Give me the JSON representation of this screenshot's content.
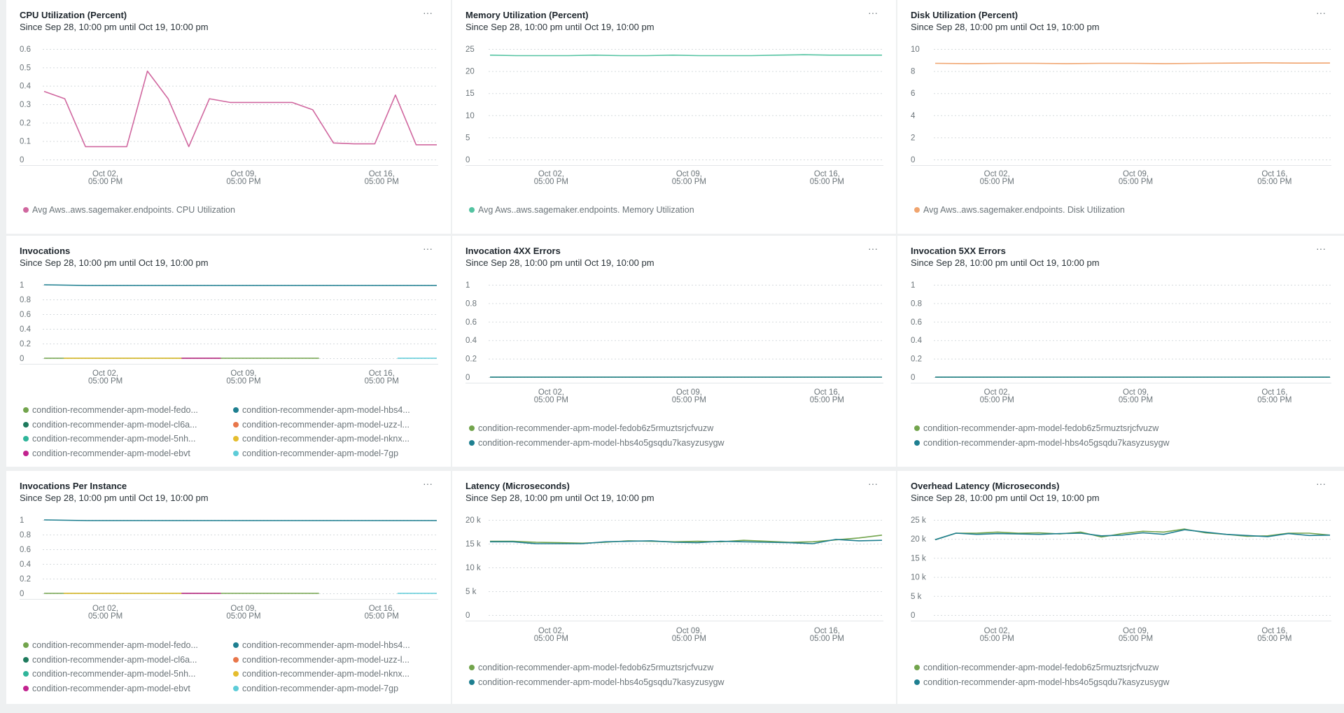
{
  "colors": {
    "pink": "#d0679f",
    "mint": "#53c3a1",
    "peach": "#f0a46e",
    "olive_green": "#72a44c",
    "dark_green": "#1e7a5d",
    "teal": "#1e7f90",
    "orange": "#e8764a",
    "medium_teal": "#2fb59a",
    "gold": "#e5bd2e",
    "magenta": "#c2238f",
    "cyan": "#5dccd8",
    "line_green": "#2e8a66"
  },
  "panels": [
    {
      "title": "CPU Utilization (Percent)",
      "subtitle": "Since Sep 28, 10:00 pm until Oct 19, 10:00 pm",
      "menu": "···",
      "chart_data": {
        "type": "line",
        "ylim": [
          0,
          0.6
        ],
        "yticks": [
          "0.6",
          "0.5",
          "0.4",
          "0.3",
          "0.2",
          "0.1",
          "0"
        ],
        "xticks": [
          [
            "Oct 02,",
            "05:00 PM"
          ],
          [
            "Oct 09,",
            "05:00 PM"
          ],
          [
            "Oct 16,",
            "05:00 PM"
          ]
        ],
        "series": [
          {
            "name": "Avg Aws..aws.sagemaker.endpoints. CPU Utilization",
            "color": "pink",
            "legend_dot": "pink",
            "values": [
              0.37,
              0.33,
              0.07,
              0.07,
              0.07,
              0.48,
              0.33,
              0.07,
              0.33,
              0.31,
              0.31,
              0.31,
              0.31,
              0.27,
              0.09,
              0.085,
              0.085,
              0.35,
              0.08,
              0.08
            ]
          }
        ]
      },
      "legend": [
        {
          "label": "Avg Aws..aws.sagemaker.endpoints. CPU Utilization",
          "color": "pink"
        }
      ]
    },
    {
      "title": "Memory Utilization (Percent)",
      "subtitle": "Since Sep 28, 10:00 pm until Oct 19, 10:00 pm",
      "menu": "···",
      "chart_data": {
        "type": "line",
        "ylim": [
          0,
          25
        ],
        "yticks": [
          "25",
          "20",
          "15",
          "10",
          "5",
          "0"
        ],
        "xticks": [
          [
            "Oct 02,",
            "05:00 PM"
          ],
          [
            "Oct 09,",
            "05:00 PM"
          ],
          [
            "Oct 16,",
            "05:00 PM"
          ]
        ],
        "series": [
          {
            "name": "Avg Aws..aws.sagemaker.endpoints. Memory Utilization",
            "color": "mint",
            "values": [
              23.6,
              23.5,
              23.5,
              23.5,
              23.6,
              23.5,
              23.5,
              23.6,
              23.5,
              23.5,
              23.5,
              23.6,
              23.7,
              23.6,
              23.6,
              23.6
            ]
          }
        ]
      },
      "legend": [
        {
          "label": "Avg Aws..aws.sagemaker.endpoints. Memory Utilization",
          "color": "mint"
        }
      ]
    },
    {
      "title": "Disk Utilization (Percent)",
      "subtitle": "Since Sep 28, 10:00 pm until Oct 19, 10:00 pm",
      "menu": "···",
      "chart_data": {
        "type": "line",
        "ylim": [
          0,
          10
        ],
        "yticks": [
          "10",
          "8",
          "6",
          "4",
          "2",
          "0"
        ],
        "xticks": [
          [
            "Oct 02,",
            "05:00 PM"
          ],
          [
            "Oct 09,",
            "05:00 PM"
          ],
          [
            "Oct 16,",
            "05:00 PM"
          ]
        ],
        "series": [
          {
            "name": "Avg Aws..aws.sagemaker.endpoints. Disk Utilization",
            "color": "peach",
            "values": [
              8.7,
              8.68,
              8.7,
              8.7,
              8.68,
              8.7,
              8.7,
              8.68,
              8.7,
              8.72,
              8.75,
              8.72,
              8.73
            ]
          }
        ]
      },
      "legend": [
        {
          "label": "Avg Aws..aws.sagemaker.endpoints. Disk Utilization",
          "color": "peach"
        }
      ]
    },
    {
      "title": "Invocations",
      "subtitle": "Since Sep 28, 10:00 pm until Oct 19, 10:00 pm",
      "menu": "···",
      "chart_data": {
        "type": "line",
        "ylim": [
          0,
          1
        ],
        "yticks": [
          "1",
          "0.8",
          "0.6",
          "0.4",
          "0.2",
          "0"
        ],
        "xticks": [
          [
            "Oct 02,",
            "05:00 PM"
          ],
          [
            "Oct 09,",
            "05:00 PM"
          ],
          [
            "Oct 16,",
            "05:00 PM"
          ]
        ],
        "series": [
          {
            "name": "condition-recommender-apm-model-hbs4",
            "color": "teal",
            "values": [
              1,
              0.99,
              0.99,
              0.99,
              0.99,
              0.99,
              0.99,
              0.99,
              0.99,
              0.99
            ]
          },
          {
            "name": "condition-recommender-apm-model-fedo",
            "color": "olive_green",
            "values": [
              0,
              0,
              0,
              0,
              0,
              0,
              0,
              0,
              0,
              0
            ],
            "range": [
              0,
              0.7
            ]
          },
          {
            "name": "condition-recommender-apm-model-uzz-l",
            "color": "gold",
            "values": [
              0,
              0,
              0
            ],
            "range": [
              0.05,
              0.35
            ]
          },
          {
            "name": "condition-recommender-apm-model-ebvt",
            "color": "magenta",
            "values": [
              0,
              0
            ],
            "range": [
              0.35,
              0.45
            ]
          },
          {
            "name": "condition-recommender-apm-model-7gp",
            "color": "cyan",
            "values": [
              0,
              0
            ],
            "range": [
              0.9,
              1
            ]
          }
        ]
      },
      "legend": [
        {
          "label": "condition-recommender-apm-model-fedo...",
          "color": "olive_green"
        },
        {
          "label": "condition-recommender-apm-model-hbs4...",
          "color": "teal"
        },
        {
          "label": "condition-recommender-apm-model-cl6a...",
          "color": "dark_green"
        },
        {
          "label": "condition-recommender-apm-model-uzz-l...",
          "color": "orange"
        },
        {
          "label": "condition-recommender-apm-model-5nh...",
          "color": "medium_teal"
        },
        {
          "label": "condition-recommender-apm-model-nknx...",
          "color": "gold"
        },
        {
          "label": "condition-recommender-apm-model-ebvt",
          "color": "magenta"
        },
        {
          "label": "condition-recommender-apm-model-7gp",
          "color": "cyan"
        }
      ]
    },
    {
      "title": "Invocation 4XX Errors",
      "subtitle": "Since Sep 28, 10:00 pm until Oct 19, 10:00 pm",
      "menu": "···",
      "chart_data": {
        "type": "line",
        "ylim": [
          0,
          1
        ],
        "yticks": [
          "1",
          "0.8",
          "0.6",
          "0.4",
          "0.2",
          "0"
        ],
        "xticks": [
          [
            "Oct 02,",
            "05:00 PM"
          ],
          [
            "Oct 09,",
            "05:00 PM"
          ],
          [
            "Oct 16,",
            "05:00 PM"
          ]
        ],
        "series": [
          {
            "name": "condition-recommender-apm-model-fedob6z5rmuztsrjcfvuzw",
            "color": "olive_green",
            "values": [
              0,
              0,
              0,
              0,
              0
            ]
          },
          {
            "name": "condition-recommender-apm-model-hbs4o5gsqdu7kasyzusygw",
            "color": "teal",
            "values": [
              0,
              0,
              0,
              0,
              0
            ]
          }
        ]
      },
      "legend": [
        {
          "label": "condition-recommender-apm-model-fedob6z5rmuztsrjcfvuzw",
          "color": "olive_green"
        },
        {
          "label": "condition-recommender-apm-model-hbs4o5gsqdu7kasyzusygw",
          "color": "teal"
        }
      ]
    },
    {
      "title": "Invocation 5XX Errors",
      "subtitle": "Since Sep 28, 10:00 pm until Oct 19, 10:00 pm",
      "menu": "···",
      "chart_data": {
        "type": "line",
        "ylim": [
          0,
          1
        ],
        "yticks": [
          "1",
          "0.8",
          "0.6",
          "0.4",
          "0.2",
          "0"
        ],
        "xticks": [
          [
            "Oct 02,",
            "05:00 PM"
          ],
          [
            "Oct 09,",
            "05:00 PM"
          ],
          [
            "Oct 16,",
            "05:00 PM"
          ]
        ],
        "series": [
          {
            "name": "condition-recommender-apm-model-fedob6z5rmuztsrjcfvuzw",
            "color": "olive_green",
            "values": [
              0,
              0,
              0,
              0,
              0
            ]
          },
          {
            "name": "condition-recommender-apm-model-hbs4o5gsqdu7kasyzusygw",
            "color": "teal",
            "values": [
              0,
              0,
              0,
              0,
              0
            ]
          }
        ]
      },
      "legend": [
        {
          "label": "condition-recommender-apm-model-fedob6z5rmuztsrjcfvuzw",
          "color": "olive_green"
        },
        {
          "label": "condition-recommender-apm-model-hbs4o5gsqdu7kasyzusygw",
          "color": "teal"
        }
      ]
    },
    {
      "title": "Invocations Per Instance",
      "subtitle": "Since Sep 28, 10:00 pm until Oct 19, 10:00 pm",
      "menu": "···",
      "chart_data": {
        "type": "line",
        "ylim": [
          0,
          1
        ],
        "yticks": [
          "1",
          "0.8",
          "0.6",
          "0.4",
          "0.2",
          "0"
        ],
        "xticks": [
          [
            "Oct 02,",
            "05:00 PM"
          ],
          [
            "Oct 09,",
            "05:00 PM"
          ],
          [
            "Oct 16,",
            "05:00 PM"
          ]
        ],
        "series": [
          {
            "name": "condition-recommender-apm-model-hbs4",
            "color": "teal",
            "values": [
              1,
              0.99,
              0.99,
              0.99,
              0.99,
              0.99,
              0.99,
              0.99,
              0.99,
              0.99
            ]
          },
          {
            "name": "condition-recommender-apm-model-fedo",
            "color": "olive_green",
            "values": [
              0,
              0,
              0,
              0,
              0,
              0,
              0,
              0,
              0,
              0
            ],
            "range": [
              0,
              0.7
            ]
          },
          {
            "name": "condition-recommender-apm-model-uzz-l",
            "color": "gold",
            "values": [
              0,
              0,
              0
            ],
            "range": [
              0.05,
              0.35
            ]
          },
          {
            "name": "condition-recommender-apm-model-ebvt",
            "color": "magenta",
            "values": [
              0,
              0
            ],
            "range": [
              0.35,
              0.45
            ]
          },
          {
            "name": "condition-recommender-apm-model-7gp",
            "color": "cyan",
            "values": [
              0,
              0
            ],
            "range": [
              0.9,
              1
            ]
          }
        ]
      },
      "legend": [
        {
          "label": "condition-recommender-apm-model-fedo...",
          "color": "olive_green"
        },
        {
          "label": "condition-recommender-apm-model-hbs4...",
          "color": "teal"
        },
        {
          "label": "condition-recommender-apm-model-cl6a...",
          "color": "dark_green"
        },
        {
          "label": "condition-recommender-apm-model-uzz-l...",
          "color": "orange"
        },
        {
          "label": "condition-recommender-apm-model-5nh...",
          "color": "medium_teal"
        },
        {
          "label": "condition-recommender-apm-model-nknx...",
          "color": "gold"
        },
        {
          "label": "condition-recommender-apm-model-ebvt",
          "color": "magenta"
        },
        {
          "label": "condition-recommender-apm-model-7gp",
          "color": "cyan"
        }
      ]
    },
    {
      "title": "Latency (Microseconds)",
      "subtitle": "Since Sep 28, 10:00 pm until Oct 19, 10:00 pm",
      "menu": "···",
      "chart_data": {
        "type": "line",
        "ylim": [
          0,
          20000
        ],
        "yticks": [
          "20 k",
          "15 k",
          "10 k",
          "5 k",
          "0"
        ],
        "xticks": [
          [
            "Oct 02,",
            "05:00 PM"
          ],
          [
            "Oct 09,",
            "05:00 PM"
          ],
          [
            "Oct 16,",
            "05:00 PM"
          ]
        ],
        "series": [
          {
            "name": "condition-recommender-apm-model-fedob6z5rmuztsrjcfvuzw",
            "color": "olive_green",
            "values": [
              15500,
              15500,
              15300,
              15200,
              15100,
              15300,
              15600,
              15500,
              15400,
              15500,
              15400,
              15700,
              15500,
              15300,
              15400,
              15800,
              16200,
              16800
            ]
          },
          {
            "name": "condition-recommender-apm-model-hbs4o5gsqdu7kasyzusygw",
            "color": "teal",
            "values": [
              15400,
              15400,
              15000,
              15000,
              15000,
              15400,
              15500,
              15600,
              15300,
              15200,
              15500,
              15400,
              15300,
              15200,
              15000,
              15900,
              15600,
              15700
            ]
          }
        ]
      },
      "legend": [
        {
          "label": "condition-recommender-apm-model-fedob6z5rmuztsrjcfvuzw",
          "color": "olive_green"
        },
        {
          "label": "condition-recommender-apm-model-hbs4o5gsqdu7kasyzusygw",
          "color": "teal"
        }
      ]
    },
    {
      "title": "Overhead Latency (Microseconds)",
      "subtitle": "Since Sep 28, 10:00 pm until Oct 19, 10:00 pm",
      "menu": "···",
      "chart_data": {
        "type": "line",
        "ylim": [
          0,
          25000
        ],
        "yticks": [
          "25 k",
          "20 k",
          "15 k",
          "10 k",
          "5 k",
          "0"
        ],
        "xticks": [
          [
            "Oct 02,",
            "05:00 PM"
          ],
          [
            "Oct 09,",
            "05:00 PM"
          ],
          [
            "Oct 16,",
            "05:00 PM"
          ]
        ],
        "series": [
          {
            "name": "condition-recommender-apm-model-fedob6z5rmuztsrjcfvuzw",
            "color": "olive_green",
            "values": [
              19800,
              21500,
              21500,
              21800,
              21500,
              21600,
              21300,
              21800,
              20500,
              21400,
              22000,
              21800,
              22600,
              21600,
              21200,
              20700,
              20800,
              21500,
              21500,
              21000
            ]
          },
          {
            "name": "condition-recommender-apm-model-hbs4o5gsqdu7kasyzusygw",
            "color": "teal",
            "values": [
              19800,
              21500,
              21200,
              21400,
              21300,
              21200,
              21400,
              21500,
              20800,
              21000,
              21600,
              21200,
              22400,
              21800,
              21200,
              20900,
              20600,
              21400,
              20900,
              21000
            ]
          }
        ]
      },
      "legend": [
        {
          "label": "condition-recommender-apm-model-fedob6z5rmuztsrjcfvuzw",
          "color": "olive_green"
        },
        {
          "label": "condition-recommender-apm-model-hbs4o5gsqdu7kasyzusygw",
          "color": "teal"
        }
      ]
    }
  ]
}
